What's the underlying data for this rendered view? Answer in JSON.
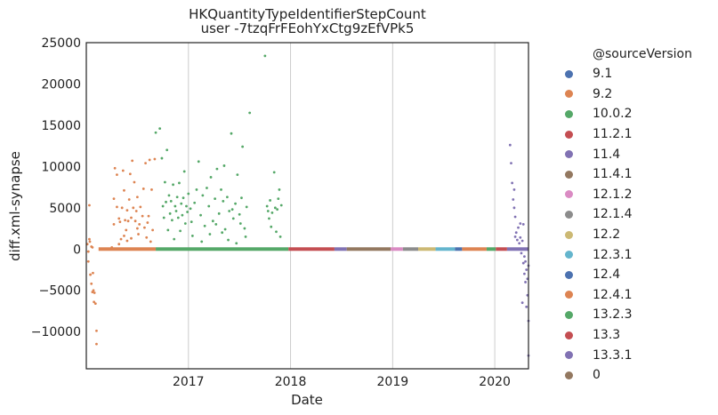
{
  "chart_data": {
    "type": "scatter",
    "title": "HKQuantityTypeIdentifierStepCount",
    "subtitle": "user -7tzqFrFEohYxCtg9zEfVPk5",
    "xlabel": "Date",
    "ylabel": "diff.xml-synapse",
    "xlim": [
      2016.0,
      2020.33
    ],
    "ylim": [
      -14500,
      25000
    ],
    "x_ticks": [
      {
        "label": "2017",
        "value": 2017
      },
      {
        "label": "2018",
        "value": 2018
      },
      {
        "label": "2019",
        "value": 2019
      },
      {
        "label": "2020",
        "value": 2020
      }
    ],
    "y_ticks": [
      {
        "label": "25000",
        "value": 25000
      },
      {
        "label": "20000",
        "value": 20000
      },
      {
        "label": "15000",
        "value": 15000
      },
      {
        "label": "10000",
        "value": 10000
      },
      {
        "label": "5000",
        "value": 5000
      },
      {
        "label": "0",
        "value": 0
      },
      {
        "label": "−5000",
        "value": -5000
      },
      {
        "label": "−10000",
        "value": -10000
      }
    ],
    "grid": "vertical",
    "legend_title": "@sourceVersion",
    "legend_position": "right",
    "series": [
      {
        "name": "9.1",
        "color": "#4c72b0",
        "points": []
      },
      {
        "name": "9.2",
        "color": "#dd8452",
        "points": [
          [
            2016.01,
            600
          ],
          [
            2016.02,
            -1500
          ],
          [
            2016.03,
            1200
          ],
          [
            2016.03,
            5300
          ],
          [
            2016.035,
            900
          ],
          [
            2016.04,
            -3100
          ],
          [
            2016.05,
            -4200
          ],
          [
            2016.05,
            300
          ],
          [
            2016.06,
            -5200
          ],
          [
            2016.065,
            -2900
          ],
          [
            2016.07,
            -5000
          ],
          [
            2016.075,
            -6400
          ],
          [
            2016.08,
            -5300
          ],
          [
            2016.09,
            -6600
          ],
          [
            2016.1,
            -9900
          ],
          [
            2016.1,
            -11500
          ],
          [
            2016.02,
            -300
          ],
          [
            2016.06,
            200
          ],
          [
            2016.25,
            200
          ],
          [
            2016.27,
            3000
          ],
          [
            2016.27,
            6100
          ],
          [
            2016.28,
            9800
          ],
          [
            2016.3,
            5100
          ],
          [
            2016.3,
            9000
          ],
          [
            2016.32,
            3700
          ],
          [
            2016.33,
            3300
          ],
          [
            2016.34,
            1200
          ],
          [
            2016.35,
            5000
          ],
          [
            2016.36,
            9500
          ],
          [
            2016.37,
            7100
          ],
          [
            2016.38,
            3500
          ],
          [
            2016.39,
            2300
          ],
          [
            2016.4,
            4700
          ],
          [
            2016.4,
            1000
          ],
          [
            2016.41,
            3400
          ],
          [
            2016.42,
            6000
          ],
          [
            2016.43,
            9100
          ],
          [
            2016.44,
            3800
          ],
          [
            2016.45,
            10700
          ],
          [
            2016.46,
            5000
          ],
          [
            2016.47,
            8100
          ],
          [
            2016.48,
            3400
          ],
          [
            2016.49,
            4600
          ],
          [
            2016.5,
            6300
          ],
          [
            2016.51,
            1800
          ],
          [
            2016.52,
            3000
          ],
          [
            2016.53,
            5100
          ],
          [
            2016.55,
            4000
          ],
          [
            2016.56,
            7300
          ],
          [
            2016.57,
            2600
          ],
          [
            2016.58,
            10400
          ],
          [
            2016.6,
            3200
          ],
          [
            2016.61,
            4000
          ],
          [
            2016.62,
            10800
          ],
          [
            2016.64,
            7200
          ],
          [
            2016.65,
            2300
          ],
          [
            2016.67,
            10900
          ],
          [
            2016.37,
            1600
          ],
          [
            2016.44,
            1300
          ],
          [
            2016.5,
            2500
          ],
          [
            2016.59,
            1400
          ],
          [
            2016.63,
            900
          ],
          [
            2016.32,
            600
          ]
        ]
      },
      {
        "name": "10.0.2",
        "color": "#55a868",
        "points": [
          [
            2016.68,
            14100
          ],
          [
            2016.72,
            14600
          ],
          [
            2016.74,
            11000
          ],
          [
            2016.75,
            5200
          ],
          [
            2016.76,
            3800
          ],
          [
            2016.77,
            8100
          ],
          [
            2016.78,
            5700
          ],
          [
            2016.79,
            12000
          ],
          [
            2016.8,
            2300
          ],
          [
            2016.81,
            6500
          ],
          [
            2016.82,
            4300
          ],
          [
            2016.83,
            5800
          ],
          [
            2016.84,
            3500
          ],
          [
            2016.85,
            7800
          ],
          [
            2016.86,
            1200
          ],
          [
            2016.87,
            5200
          ],
          [
            2016.88,
            4600
          ],
          [
            2016.89,
            6300
          ],
          [
            2016.9,
            3800
          ],
          [
            2016.91,
            8000
          ],
          [
            2016.92,
            2200
          ],
          [
            2016.93,
            5500
          ],
          [
            2016.94,
            4100
          ],
          [
            2016.95,
            6200
          ],
          [
            2016.96,
            9400
          ],
          [
            2016.97,
            3100
          ],
          [
            2016.98,
            5200
          ],
          [
            2016.99,
            4500
          ],
          [
            2017.0,
            6700
          ],
          [
            2017.02,
            4900
          ],
          [
            2017.04,
            1600
          ],
          [
            2017.06,
            5600
          ],
          [
            2017.08,
            7200
          ],
          [
            2017.1,
            10600
          ],
          [
            2017.12,
            4100
          ],
          [
            2017.14,
            6500
          ],
          [
            2017.16,
            2800
          ],
          [
            2017.18,
            7400
          ],
          [
            2017.2,
            5200
          ],
          [
            2017.22,
            8700
          ],
          [
            2017.24,
            3400
          ],
          [
            2017.26,
            6100
          ],
          [
            2017.28,
            9700
          ],
          [
            2017.3,
            4300
          ],
          [
            2017.32,
            7200
          ],
          [
            2017.34,
            5800
          ],
          [
            2017.35,
            10100
          ],
          [
            2017.36,
            2400
          ],
          [
            2017.38,
            6300
          ],
          [
            2017.4,
            4600
          ],
          [
            2017.42,
            14000
          ],
          [
            2017.44,
            3700
          ],
          [
            2017.46,
            5500
          ],
          [
            2017.48,
            9000
          ],
          [
            2017.5,
            4200
          ],
          [
            2017.52,
            6200
          ],
          [
            2017.53,
            12400
          ],
          [
            2017.55,
            2500
          ],
          [
            2017.57,
            5100
          ],
          [
            2017.6,
            16500
          ],
          [
            2017.03,
            3300
          ],
          [
            2017.13,
            900
          ],
          [
            2017.21,
            1800
          ],
          [
            2017.27,
            3000
          ],
          [
            2017.33,
            2000
          ],
          [
            2017.39,
            1100
          ],
          [
            2017.43,
            4800
          ],
          [
            2017.47,
            700
          ],
          [
            2017.51,
            3100
          ],
          [
            2017.56,
            1500
          ],
          [
            2017.75,
            23400
          ],
          [
            2017.77,
            5200
          ],
          [
            2017.78,
            4600
          ],
          [
            2017.79,
            3700
          ],
          [
            2017.8,
            5900
          ],
          [
            2017.81,
            2700
          ],
          [
            2017.82,
            4400
          ],
          [
            2017.84,
            9300
          ],
          [
            2017.85,
            5000
          ],
          [
            2017.86,
            2100
          ],
          [
            2017.87,
            4800
          ],
          [
            2017.88,
            6100
          ],
          [
            2017.89,
            7200
          ],
          [
            2017.9,
            1500
          ],
          [
            2017.91,
            5300
          ]
        ]
      },
      {
        "name": "11.2.1",
        "color": "#c44e52",
        "points": []
      },
      {
        "name": "11.4",
        "color": "#8172b3",
        "points": []
      },
      {
        "name": "11.4.1",
        "color": "#937860",
        "points": []
      },
      {
        "name": "12.1.2",
        "color": "#da8bc3",
        "points": []
      },
      {
        "name": "12.1.4",
        "color": "#8c8c8c",
        "points": []
      },
      {
        "name": "12.2",
        "color": "#ccb974",
        "points": []
      },
      {
        "name": "12.3.1",
        "color": "#64b5cd",
        "points": []
      },
      {
        "name": "12.4",
        "color": "#4c72b0",
        "points": []
      },
      {
        "name": "12.4.1",
        "color": "#dd8452",
        "points": []
      },
      {
        "name": "13.2.3",
        "color": "#55a868",
        "points": []
      },
      {
        "name": "13.3",
        "color": "#c44e52",
        "points": []
      },
      {
        "name": "13.3.1",
        "color": "#8172b3",
        "points": [
          [
            2020.15,
            12600
          ],
          [
            2020.16,
            10400
          ],
          [
            2020.17,
            8000
          ],
          [
            2020.18,
            6000
          ],
          [
            2020.19,
            7200
          ],
          [
            2020.19,
            5000
          ],
          [
            2020.2,
            3900
          ],
          [
            2020.2,
            1500
          ],
          [
            2020.21,
            2000
          ],
          [
            2020.22,
            1100
          ],
          [
            2020.23,
            2600
          ],
          [
            2020.24,
            700
          ],
          [
            2020.25,
            1400
          ],
          [
            2020.25,
            3100
          ],
          [
            2020.26,
            -500
          ],
          [
            2020.27,
            1000
          ],
          [
            2020.27,
            -6500
          ],
          [
            2020.28,
            -1700
          ],
          [
            2020.28,
            3000
          ],
          [
            2020.29,
            -3000
          ],
          [
            2020.29,
            -900
          ],
          [
            2020.3,
            -4000
          ],
          [
            2020.3,
            -1500
          ],
          [
            2020.31,
            -2500
          ],
          [
            2020.31,
            -7000
          ],
          [
            2020.32,
            -5600
          ],
          [
            2020.32,
            -3600
          ],
          [
            2020.33,
            -8700
          ],
          [
            2020.33,
            -12900
          ],
          [
            2020.33,
            -2000
          ]
        ]
      },
      {
        "name": "0",
        "color": "#937860",
        "points": []
      }
    ],
    "zero_band": [
      {
        "series": "9.2",
        "from": 2016.12,
        "to": 2016.68
      },
      {
        "series": "10.0.2",
        "from": 2016.68,
        "to": 2017.98
      },
      {
        "series": "11.2.1",
        "from": 2017.98,
        "to": 2018.43
      },
      {
        "series": "11.4",
        "from": 2018.43,
        "to": 2018.55
      },
      {
        "series": "11.4.1",
        "from": 2018.55,
        "to": 2018.98
      },
      {
        "series": "12.1.2",
        "from": 2018.98,
        "to": 2019.1
      },
      {
        "series": "12.1.4",
        "from": 2019.1,
        "to": 2019.25
      },
      {
        "series": "12.2",
        "from": 2019.25,
        "to": 2019.42
      },
      {
        "series": "12.3.1",
        "from": 2019.42,
        "to": 2019.61
      },
      {
        "series": "12.4",
        "from": 2019.61,
        "to": 2019.68
      },
      {
        "series": "12.4.1",
        "from": 2019.68,
        "to": 2019.92
      },
      {
        "series": "13.2.3",
        "from": 2019.92,
        "to": 2020.01
      },
      {
        "series": "13.3",
        "from": 2020.01,
        "to": 2020.12
      },
      {
        "series": "13.3.1",
        "from": 2020.12,
        "to": 2020.33
      }
    ]
  }
}
